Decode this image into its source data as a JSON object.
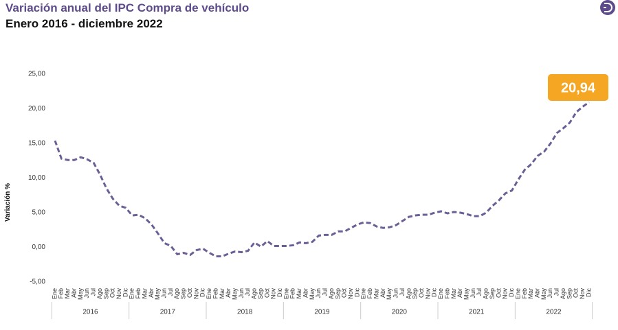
{
  "chart_data": {
    "type": "line",
    "title": "Variación anual del IPC Compra de vehículo",
    "subtitle": "Enero 2016 - diciembre 2022",
    "y_label": "Variación %",
    "categories": [
      "Ene",
      "Feb",
      "Mar",
      "Abr",
      "May",
      "Jun",
      "Jul",
      "Ago",
      "Sep",
      "Oct",
      "Nov",
      "Dic",
      "Ene",
      "Feb",
      "Mar",
      "Abr",
      "May",
      "Jun",
      "Jul",
      "Ago",
      "Sep",
      "Oct",
      "Nov",
      "Dic",
      "Ene",
      "Feb",
      "Mar",
      "Abr",
      "May",
      "Jun",
      "Jul",
      "Ago",
      "Sep",
      "Oct",
      "Nov",
      "Dic",
      "Ene",
      "Feb",
      "Mar",
      "Abr",
      "May",
      "Jun",
      "Jul",
      "Ago",
      "Sep",
      "Oct",
      "Nov",
      "Dic",
      "Ene",
      "Feb",
      "Mar",
      "Abr",
      "May",
      "Jun",
      "Jul",
      "Ago",
      "Sep",
      "Oct",
      "Nov",
      "Dic",
      "Ene",
      "Feb",
      "Mar",
      "Abr",
      "May",
      "Jun",
      "Jul",
      "Ago",
      "Sep",
      "Oct",
      "Nov",
      "Dic",
      "Ene",
      "Feb",
      "Mar",
      "Abr",
      "May",
      "Jun",
      "Jul",
      "Ago",
      "Sep",
      "Oct",
      "Nov",
      "Dic"
    ],
    "year_groups": [
      "2016",
      "2017",
      "2018",
      "2019",
      "2020",
      "2021",
      "2022"
    ],
    "series": [
      {
        "color": "#6b5f96",
        "values": [
          15.4,
          12.8,
          12.6,
          12.6,
          13.0,
          12.7,
          12.2,
          10.5,
          8.5,
          7.0,
          6.0,
          5.7,
          4.6,
          4.7,
          4.2,
          3.3,
          2.0,
          0.6,
          0.2,
          -1.0,
          -0.8,
          -1.1,
          -0.4,
          -0.2,
          -0.8,
          -1.3,
          -1.3,
          -0.9,
          -0.6,
          -0.7,
          -0.5,
          0.7,
          0.1,
          0.9,
          0.2,
          0.2,
          0.2,
          0.3,
          0.7,
          0.6,
          0.8,
          1.7,
          1.8,
          1.8,
          2.3,
          2.3,
          2.8,
          3.3,
          3.6,
          3.5,
          3.0,
          2.8,
          2.9,
          3.2,
          3.8,
          4.4,
          4.6,
          4.7,
          4.7,
          5.0,
          5.2,
          4.9,
          5.1,
          5.0,
          4.8,
          4.5,
          4.5,
          5.0,
          6.0,
          6.8,
          7.8,
          8.2,
          9.8,
          11.2,
          12.0,
          13.2,
          13.8,
          15.0,
          16.5,
          17.2,
          18.0,
          19.5,
          20.3,
          20.94
        ]
      }
    ],
    "highlight": {
      "value": 20.94,
      "label": "20,94",
      "color": "#f5a623"
    },
    "ylim": [
      -5,
      25
    ],
    "yticks": [
      {
        "value": -5,
        "label": "-5,00"
      },
      {
        "value": 0,
        "label": "0,00"
      },
      {
        "value": 5,
        "label": "5,00"
      },
      {
        "value": 10,
        "label": "10,00"
      },
      {
        "value": 15,
        "label": "15,00"
      },
      {
        "value": 20,
        "label": "20,00"
      },
      {
        "value": 25,
        "label": "25,00"
      }
    ]
  }
}
